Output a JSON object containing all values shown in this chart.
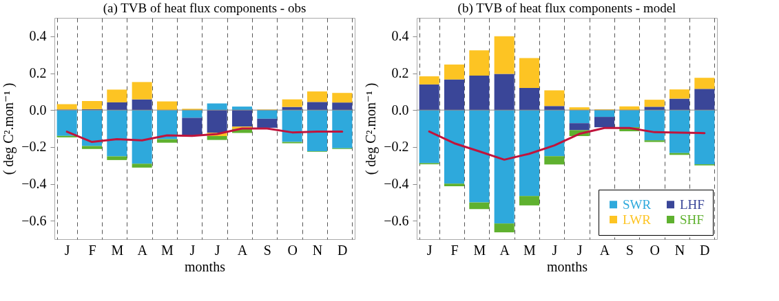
{
  "chart_data": [
    {
      "type": "bar",
      "title": "(a) TVB of heat flux components - obs",
      "xlabel": "months",
      "ylabel": "( deg C².mon⁻¹ )",
      "categories": [
        "J",
        "F",
        "M",
        "A",
        "M",
        "J",
        "J",
        "A",
        "S",
        "O",
        "N",
        "D"
      ],
      "stacked": true,
      "ylim": [
        -0.7,
        0.5
      ],
      "yticks": [
        -0.6,
        -0.4,
        -0.2,
        {
          "value": 0,
          "label": "0.0"
        },
        0.2,
        0.4
      ],
      "grid": "x",
      "legend": false,
      "ref_lines": [
        {
          "axis": "y",
          "value": 0,
          "color": "#888888"
        }
      ],
      "series": [
        {
          "color": "#2ea9dc",
          "values": [
            -0.14,
            -0.195,
            -0.251,
            -0.291,
            -0.158,
            -0.042,
            0.036,
            0.019,
            -0.047,
            -0.173,
            -0.223,
            -0.207
          ]
        },
        {
          "color": "#3a4698",
          "values": [
            0.003,
            0.005,
            0.042,
            0.058,
            null,
            -0.098,
            -0.123,
            -0.09,
            -0.049,
            0.017,
            0.044,
            0.041
          ]
        },
        {
          "color": "#fdc423",
          "values": [
            0.029,
            0.044,
            0.069,
            0.094,
            0.047,
            0.007,
            -0.018,
            -0.012,
            0.003,
            0.041,
            0.057,
            0.052
          ]
        },
        {
          "color": "#5fb12f",
          "values": [
            -0.008,
            -0.016,
            -0.02,
            -0.021,
            -0.019,
            null,
            -0.021,
            -0.022,
            null,
            -0.007,
            -0.003,
            -0.004
          ]
        },
        {
          "type": "line",
          "color": "#c0143c",
          "values": [
            -0.117,
            -0.173,
            -0.158,
            -0.164,
            -0.137,
            -0.14,
            -0.13,
            -0.1,
            -0.1,
            -0.121,
            -0.117,
            -0.117
          ]
        }
      ]
    },
    {
      "type": "bar",
      "title": "(b) TVB of heat flux components - model",
      "xlabel": "months",
      "ylabel": "( deg C².mon⁻¹ )",
      "categories": [
        "J",
        "F",
        "M",
        "A",
        "M",
        "J",
        "J",
        "A",
        "S",
        "O",
        "N",
        "D"
      ],
      "stacked": true,
      "ylim": [
        -0.7,
        0.5
      ],
      "yticks": [
        -0.6,
        -0.4,
        -0.2,
        {
          "value": 0,
          "label": "0.0"
        },
        0.2,
        0.4
      ],
      "grid": "x",
      "legend": "bottom right",
      "ref_lines": [
        {
          "axis": "y",
          "value": 0,
          "color": "#888888"
        }
      ],
      "series": [
        {
          "name": "SWR",
          "color": "#2ea9dc",
          "values": [
            -0.288,
            -0.399,
            -0.501,
            -0.615,
            -0.466,
            -0.25,
            -0.071,
            -0.037,
            -0.093,
            -0.164,
            -0.233,
            -0.294
          ]
        },
        {
          "name": "LHF",
          "color": "#3a4698",
          "values": [
            0.139,
            0.166,
            0.187,
            0.196,
            0.12,
            0.022,
            -0.038,
            -0.056,
            null,
            0.018,
            0.062,
            0.115
          ]
        },
        {
          "name": "LWR",
          "color": "#fdc423",
          "values": [
            0.044,
            0.081,
            0.137,
            0.204,
            0.162,
            0.085,
            0.015,
            0.004,
            0.02,
            0.038,
            0.05,
            0.06
          ]
        },
        {
          "name": "SHF",
          "color": "#5fb12f",
          "values": [
            -0.006,
            -0.014,
            -0.036,
            -0.048,
            -0.051,
            -0.045,
            -0.032,
            null,
            -0.022,
            -0.009,
            -0.01,
            -0.006
          ]
        },
        {
          "type": "line",
          "color": "#c0143c",
          "values": [
            -0.116,
            -0.18,
            -0.224,
            -0.269,
            -0.237,
            -0.192,
            -0.129,
            -0.097,
            -0.097,
            -0.12,
            -0.122,
            -0.125
          ]
        }
      ]
    }
  ]
}
